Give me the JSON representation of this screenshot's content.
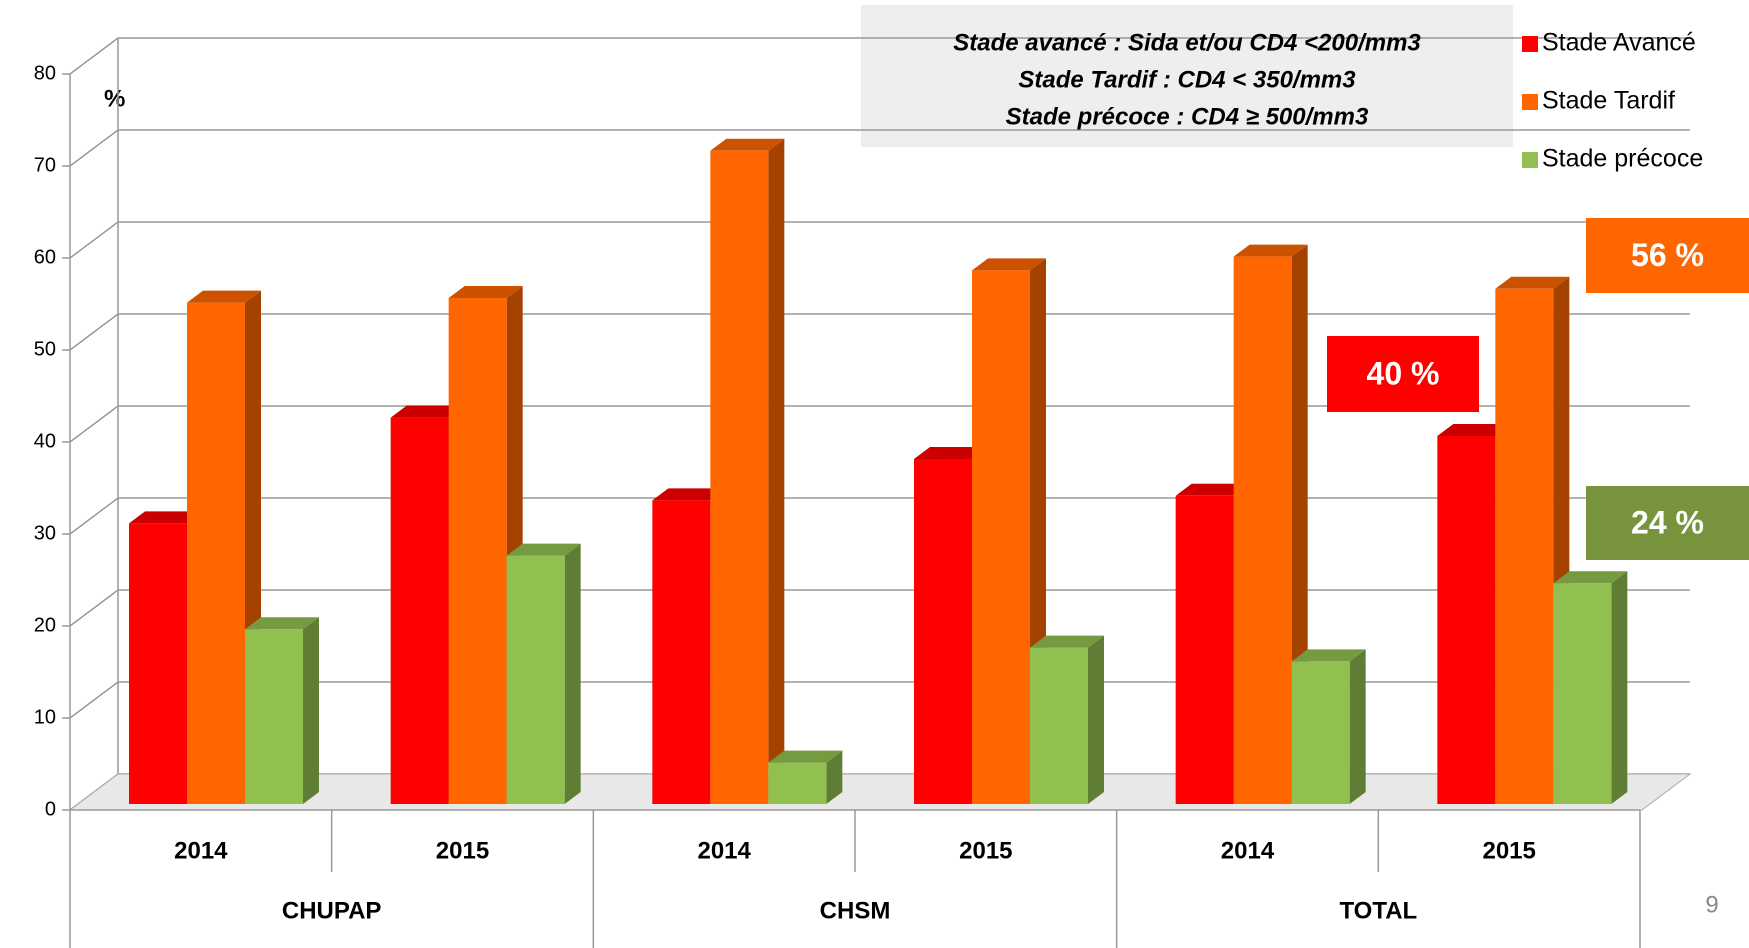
{
  "chart_data": {
    "type": "bar3d",
    "y_label": "%",
    "categories": [
      "2014",
      "2015",
      "2014",
      "2015",
      "2014",
      "2015"
    ],
    "groups": [
      "CHUPAP",
      "CHSM",
      "TOTAL"
    ],
    "series": [
      {
        "name": "Stade Avancé",
        "color": "#ff0000",
        "values": [
          30.5,
          42,
          33,
          37.5,
          33.5,
          40
        ]
      },
      {
        "name": "Stade Tardif",
        "color": "#ff6600",
        "values": [
          54.5,
          55,
          71,
          58,
          59.5,
          56
        ]
      },
      {
        "name": "Stade précoce",
        "color": "#92c050",
        "values": [
          19,
          27,
          4.5,
          17,
          15.5,
          24
        ]
      }
    ],
    "ylim": [
      0,
      80
    ],
    "yticks": [
      0,
      10,
      20,
      30,
      40,
      50,
      60,
      70,
      80
    ],
    "grid": true,
    "legend": "right",
    "notes": [
      "Stade avancé : Sida et/ou CD4 <200/mm3",
      "Stade Tardif : CD4 < 350/mm3",
      "Stade précoce : CD4 ≥ 500/mm3"
    ],
    "annotations": [
      {
        "text": "56 %",
        "color": "#ff6600"
      },
      {
        "text": "40 %",
        "color": "#ff0000"
      },
      {
        "text": "24 %",
        "color": "#77933c"
      }
    ],
    "page_number": "9"
  }
}
